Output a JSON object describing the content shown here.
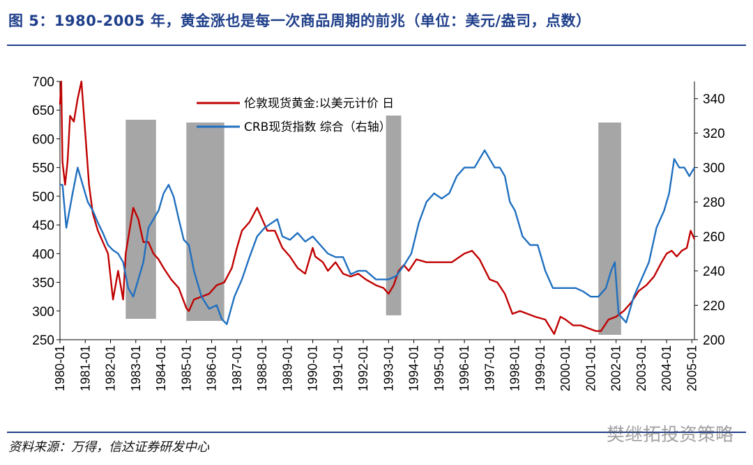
{
  "title": "图 5：1980-2005 年，黄金涨也是每一次商品周期的前兆（单位：美元/盎司，点数）",
  "source": "资料来源：万得，信达证券研发中心",
  "watermark": "樊继拓投资策略",
  "colors": {
    "title": "#1f3f8a",
    "gold": "#c00000",
    "crb": "#1f6fbf",
    "shade": "#a6a6a6"
  },
  "chart_data": {
    "type": "line",
    "y_left": {
      "min": 250,
      "max": 700,
      "ticks": [
        250,
        300,
        350,
        400,
        450,
        500,
        550,
        600,
        650,
        700
      ]
    },
    "y_right": {
      "min": 200,
      "max": 350,
      "ticks": [
        200,
        220,
        240,
        260,
        280,
        300,
        320,
        340
      ]
    },
    "x_range": [
      1980.0,
      2005.1
    ],
    "x_ticks": [
      "1980-01",
      "1981-01",
      "1982-01",
      "1983-01",
      "1984-01",
      "1985-01",
      "1986-01",
      "1987-01",
      "1988-01",
      "1989-01",
      "1990-01",
      "1991-01",
      "1992-01",
      "1993-01",
      "1994-01",
      "1995-01",
      "1996-01",
      "1997-01",
      "1998-01",
      "1999-01",
      "2000-01",
      "2001-01",
      "2002-01",
      "2003-01",
      "2004-01",
      "2005-01"
    ],
    "shaded_periods": [
      [
        1982.6,
        1983.8
      ],
      [
        1985.0,
        1986.5
      ],
      [
        1992.9,
        1993.5
      ],
      [
        2001.3,
        2002.2
      ]
    ],
    "series": [
      {
        "name": "伦敦现货黄金:以美元计价 日",
        "axis": "left",
        "x": [
          1980.0,
          1980.05,
          1980.1,
          1980.2,
          1980.3,
          1980.4,
          1980.55,
          1980.7,
          1980.85,
          1981.0,
          1981.15,
          1981.3,
          1981.5,
          1981.7,
          1981.9,
          1982.1,
          1982.3,
          1982.5,
          1982.6,
          1982.75,
          1982.9,
          1983.1,
          1983.3,
          1983.5,
          1983.7,
          1983.9,
          1984.1,
          1984.4,
          1984.7,
          1985.0,
          1985.1,
          1985.3,
          1985.6,
          1985.9,
          1986.2,
          1986.5,
          1986.8,
          1987.0,
          1987.2,
          1987.5,
          1987.8,
          1987.95,
          1988.2,
          1988.5,
          1988.8,
          1989.1,
          1989.4,
          1989.7,
          1990.0,
          1990.1,
          1990.4,
          1990.6,
          1990.9,
          1991.2,
          1991.5,
          1991.8,
          1992.1,
          1992.5,
          1992.8,
          1993.0,
          1993.2,
          1993.4,
          1993.6,
          1993.8,
          1994.1,
          1994.5,
          1995.0,
          1995.5,
          1996.0,
          1996.3,
          1996.6,
          1997.0,
          1997.3,
          1997.6,
          1997.9,
          1998.2,
          1998.5,
          1998.8,
          1999.2,
          1999.55,
          1999.8,
          2000.0,
          2000.3,
          2000.6,
          2000.9,
          2001.2,
          2001.4,
          2001.7,
          2002.0,
          2002.3,
          2002.6,
          2002.9,
          2003.2,
          2003.5,
          2003.8,
          2004.0,
          2004.2,
          2004.4,
          2004.6,
          2004.8,
          2004.95,
          2005.1
        ],
        "values": [
          660,
          700,
          560,
          520,
          560,
          640,
          630,
          670,
          700,
          610,
          520,
          470,
          440,
          420,
          400,
          320,
          370,
          320,
          400,
          440,
          480,
          460,
          420,
          420,
          400,
          390,
          375,
          355,
          340,
          305,
          300,
          320,
          325,
          330,
          345,
          350,
          375,
          410,
          440,
          455,
          480,
          465,
          440,
          440,
          410,
          395,
          375,
          365,
          410,
          395,
          385,
          370,
          385,
          365,
          360,
          365,
          355,
          345,
          340,
          330,
          345,
          370,
          380,
          370,
          390,
          385,
          385,
          385,
          400,
          405,
          390,
          355,
          350,
          330,
          295,
          300,
          295,
          290,
          285,
          260,
          290,
          285,
          275,
          275,
          270,
          265,
          265,
          285,
          290,
          300,
          315,
          335,
          345,
          360,
          385,
          400,
          405,
          395,
          405,
          410,
          440,
          425
        ]
      },
      {
        "name": "CRB现货指数 综合（右轴）",
        "axis": "right",
        "x": [
          1980.0,
          1980.1,
          1980.25,
          1980.5,
          1980.7,
          1980.9,
          1981.1,
          1981.3,
          1981.5,
          1981.7,
          1981.9,
          1982.1,
          1982.3,
          1982.5,
          1982.7,
          1982.9,
          1983.1,
          1983.3,
          1983.5,
          1983.7,
          1983.9,
          1984.1,
          1984.3,
          1984.5,
          1984.7,
          1984.9,
          1985.1,
          1985.3,
          1985.6,
          1985.9,
          1986.2,
          1986.4,
          1986.6,
          1986.9,
          1987.2,
          1987.5,
          1987.8,
          1988.1,
          1988.4,
          1988.6,
          1988.8,
          1989.1,
          1989.4,
          1989.7,
          1990.0,
          1990.3,
          1990.6,
          1990.9,
          1991.2,
          1991.5,
          1991.8,
          1992.1,
          1992.5,
          1992.8,
          1993.0,
          1993.3,
          1993.6,
          1993.9,
          1994.2,
          1994.5,
          1994.8,
          1995.1,
          1995.4,
          1995.7,
          1996.0,
          1996.2,
          1996.4,
          1996.6,
          1996.8,
          1997.0,
          1997.2,
          1997.4,
          1997.6,
          1997.8,
          1998.0,
          1998.3,
          1998.6,
          1998.9,
          1999.2,
          1999.5,
          1999.8,
          2000.1,
          2000.4,
          2000.7,
          2001.0,
          2001.3,
          2001.6,
          2001.8,
          2001.95,
          2002.1,
          2002.4,
          2002.7,
          2003.0,
          2003.3,
          2003.6,
          2003.9,
          2004.1,
          2004.3,
          2004.5,
          2004.7,
          2004.9,
          2005.1
        ],
        "values": [
          290,
          290,
          265,
          285,
          300,
          290,
          280,
          275,
          268,
          262,
          255,
          252,
          250,
          245,
          230,
          225,
          235,
          245,
          265,
          270,
          275,
          285,
          290,
          283,
          270,
          258,
          255,
          240,
          225,
          218,
          220,
          212,
          209,
          225,
          235,
          248,
          260,
          265,
          268,
          270,
          260,
          258,
          262,
          257,
          260,
          255,
          250,
          248,
          248,
          238,
          240,
          240,
          235,
          235,
          235,
          237,
          243,
          250,
          268,
          280,
          285,
          282,
          285,
          295,
          300,
          300,
          300,
          305,
          310,
          305,
          300,
          300,
          295,
          280,
          275,
          260,
          255,
          255,
          240,
          230,
          230,
          230,
          230,
          228,
          225,
          225,
          230,
          240,
          245,
          215,
          210,
          225,
          235,
          245,
          265,
          275,
          285,
          305,
          300,
          300,
          295,
          300
        ]
      }
    ]
  }
}
